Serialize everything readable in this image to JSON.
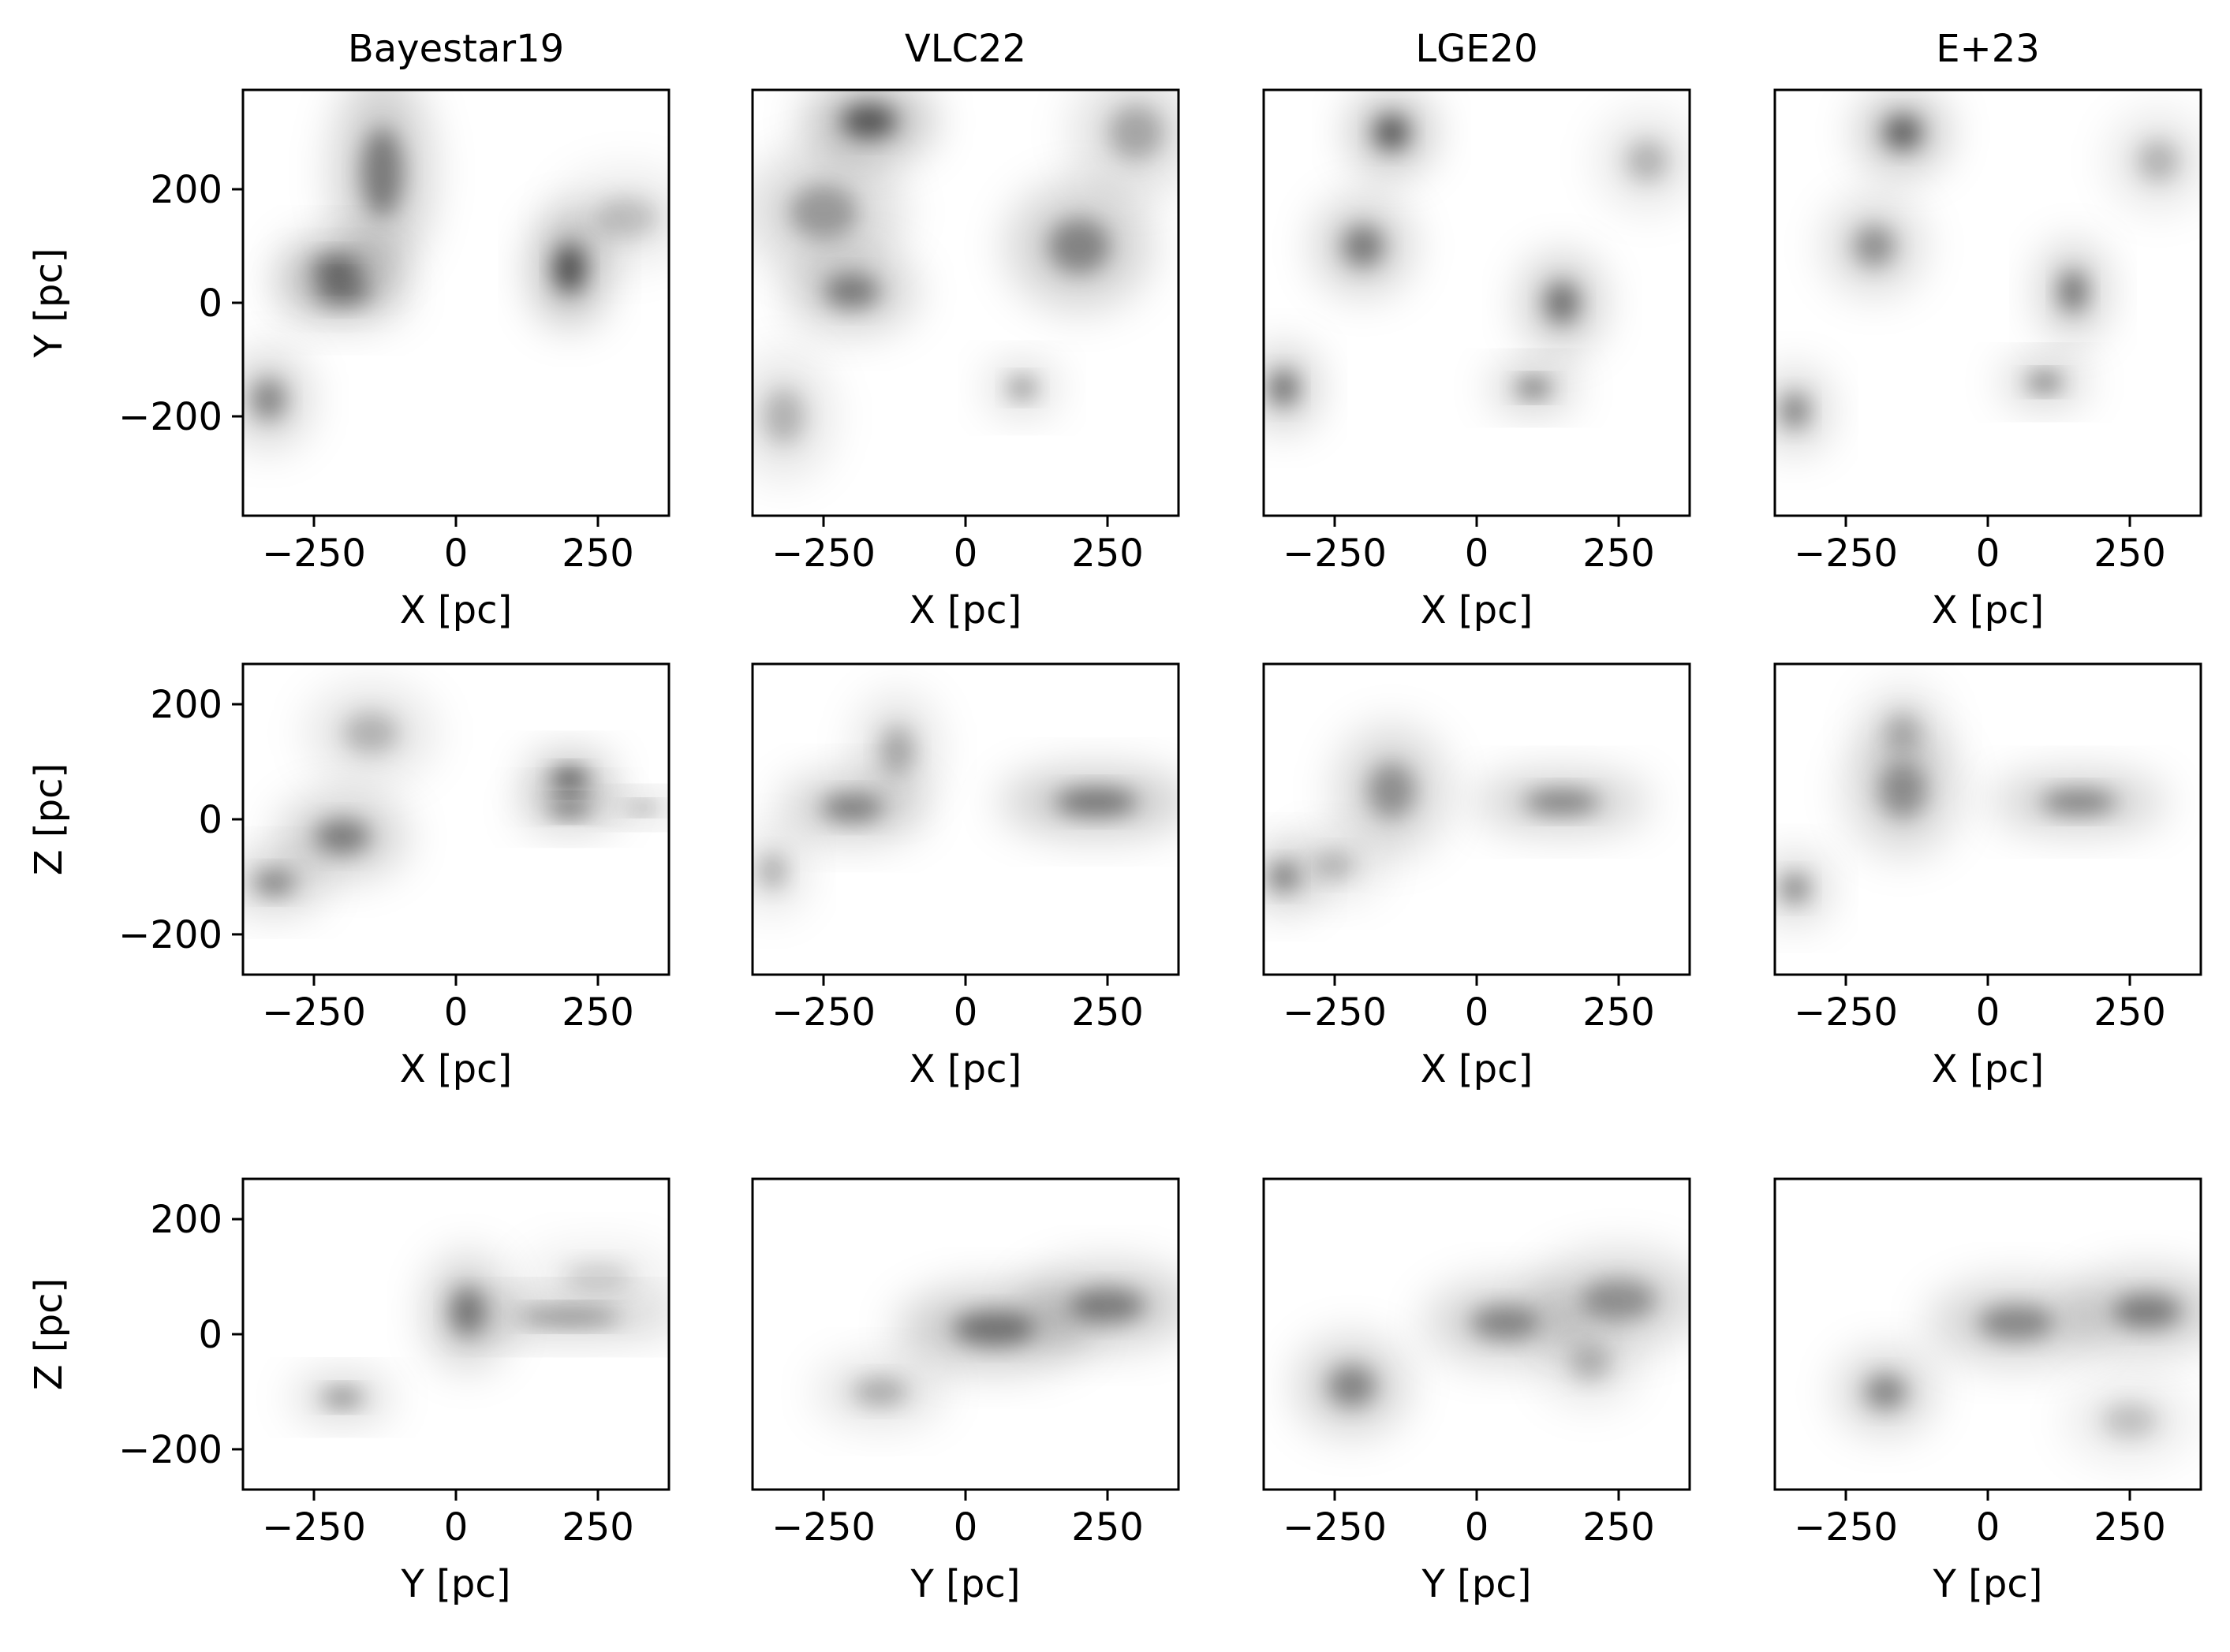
{
  "chart_data": {
    "type": "heatmap",
    "colormap": "Greys",
    "colormap_colors": [
      "#ffffff",
      "#000000"
    ],
    "columns": [
      {
        "title": "Bayestar19"
      },
      {
        "title": "VLC22"
      },
      {
        "title": "LGE20"
      },
      {
        "title": "E+23"
      }
    ],
    "rows": [
      {
        "projection": "XY",
        "xlabel": "X [pc]",
        "ylabel": "Y [pc]",
        "xlim": [
          -375,
          375
        ],
        "ylim": [
          -375,
          375
        ],
        "xticks": [
          -250,
          0,
          250
        ],
        "xtick_labels": [
          "−250",
          "0",
          "250"
        ],
        "yticks": [
          -200,
          0,
          200
        ],
        "ytick_labels": [
          "−200",
          "0",
          "200"
        ]
      },
      {
        "projection": "XZ",
        "xlabel": "X [pc]",
        "ylabel": "Z [pc]",
        "xlim": [
          -375,
          375
        ],
        "ylim": [
          -270,
          270
        ],
        "xticks": [
          -250,
          0,
          250
        ],
        "xtick_labels": [
          "−250",
          "0",
          "250"
        ],
        "yticks": [
          -200,
          0,
          200
        ],
        "ytick_labels": [
          "−200",
          "0",
          "200"
        ]
      },
      {
        "projection": "YZ",
        "xlabel": "Y [pc]",
        "ylabel": "Z [pc]",
        "xlim": [
          -375,
          375
        ],
        "ylim": [
          -270,
          270
        ],
        "xticks": [
          -250,
          0,
          250
        ],
        "xtick_labels": [
          "−250",
          "0",
          "250"
        ],
        "yticks": [
          -200,
          0,
          200
        ],
        "ytick_labels": [
          "−200",
          "0",
          "200"
        ]
      }
    ],
    "dust_features": [
      [
        [
          {
            "x": -130,
            "y": 230,
            "dx": 60,
            "dy": 130,
            "density": 0.55
          },
          {
            "x": -210,
            "y": 60,
            "dx": 70,
            "dy": 40,
            "density": 0.6
          },
          {
            "x": -200,
            "y": 20,
            "dx": 80,
            "dy": 40,
            "density": 0.55
          },
          {
            "x": 200,
            "y": 60,
            "dx": 45,
            "dy": 70,
            "density": 0.8
          },
          {
            "x": 300,
            "y": 150,
            "dx": 90,
            "dy": 60,
            "density": 0.25
          },
          {
            "x": -330,
            "y": -170,
            "dx": 50,
            "dy": 60,
            "density": 0.5
          }
        ],
        [
          {
            "x": -170,
            "y": 320,
            "dx": 80,
            "dy": 50,
            "density": 0.75
          },
          {
            "x": -250,
            "y": 160,
            "dx": 100,
            "dy": 80,
            "density": 0.4
          },
          {
            "x": -200,
            "y": 20,
            "dx": 80,
            "dy": 50,
            "density": 0.55
          },
          {
            "x": 200,
            "y": 100,
            "dx": 90,
            "dy": 80,
            "density": 0.5
          },
          {
            "x": 300,
            "y": 300,
            "dx": 80,
            "dy": 80,
            "density": 0.35
          },
          {
            "x": 100,
            "y": -150,
            "dx": 40,
            "dy": 30,
            "density": 0.5
          },
          {
            "x": -320,
            "y": -200,
            "dx": 60,
            "dy": 80,
            "density": 0.3
          }
        ],
        [
          {
            "x": -150,
            "y": 300,
            "dx": 50,
            "dy": 50,
            "density": 0.75
          },
          {
            "x": -200,
            "y": 100,
            "dx": 60,
            "dy": 60,
            "density": 0.55
          },
          {
            "x": 150,
            "y": 0,
            "dx": 50,
            "dy": 60,
            "density": 0.6
          },
          {
            "x": 100,
            "y": -150,
            "dx": 50,
            "dy": 25,
            "density": 0.7
          },
          {
            "x": -340,
            "y": -150,
            "dx": 40,
            "dy": 50,
            "density": 0.65
          },
          {
            "x": 300,
            "y": 250,
            "dx": 60,
            "dy": 60,
            "density": 0.3
          }
        ],
        [
          {
            "x": -150,
            "y": 300,
            "dx": 55,
            "dy": 50,
            "density": 0.7
          },
          {
            "x": -200,
            "y": 100,
            "dx": 60,
            "dy": 60,
            "density": 0.45
          },
          {
            "x": 150,
            "y": 20,
            "dx": 40,
            "dy": 60,
            "density": 0.6
          },
          {
            "x": 100,
            "y": -140,
            "dx": 50,
            "dy": 25,
            "density": 0.65
          },
          {
            "x": -340,
            "y": -190,
            "dx": 40,
            "dy": 50,
            "density": 0.55
          },
          {
            "x": 300,
            "y": 250,
            "dx": 60,
            "dy": 60,
            "density": 0.3
          }
        ]
      ],
      [
        [
          {
            "x": 200,
            "y": 70,
            "dx": 50,
            "dy": 30,
            "density": 0.8
          },
          {
            "x": 200,
            "y": 20,
            "dx": 60,
            "dy": 25,
            "density": 0.6
          },
          {
            "x": -200,
            "y": -30,
            "dx": 80,
            "dy": 50,
            "density": 0.55
          },
          {
            "x": -320,
            "y": -110,
            "dx": 60,
            "dy": 35,
            "density": 0.55
          },
          {
            "x": -150,
            "y": 150,
            "dx": 80,
            "dy": 60,
            "density": 0.3
          },
          {
            "x": 330,
            "y": 20,
            "dx": 50,
            "dy": 15,
            "density": 0.5
          }
        ],
        [
          {
            "x": -200,
            "y": 20,
            "dx": 90,
            "dy": 40,
            "density": 0.55
          },
          {
            "x": -120,
            "y": 120,
            "dx": 50,
            "dy": 70,
            "density": 0.35
          },
          {
            "x": 230,
            "y": 30,
            "dx": 120,
            "dy": 40,
            "density": 0.6
          },
          {
            "x": -340,
            "y": -90,
            "dx": 40,
            "dy": 50,
            "density": 0.35
          }
        ],
        [
          {
            "x": -150,
            "y": 50,
            "dx": 70,
            "dy": 80,
            "density": 0.45
          },
          {
            "x": 150,
            "y": 30,
            "dx": 110,
            "dy": 35,
            "density": 0.55
          },
          {
            "x": -340,
            "y": -100,
            "dx": 40,
            "dy": 40,
            "density": 0.6
          },
          {
            "x": -250,
            "y": -80,
            "dx": 60,
            "dy": 40,
            "density": 0.3
          }
        ],
        [
          {
            "x": -150,
            "y": 50,
            "dx": 70,
            "dy": 80,
            "density": 0.45
          },
          {
            "x": 160,
            "y": 30,
            "dx": 110,
            "dy": 35,
            "density": 0.55
          },
          {
            "x": -340,
            "y": -120,
            "dx": 40,
            "dy": 40,
            "density": 0.55
          },
          {
            "x": -150,
            "y": 150,
            "dx": 50,
            "dy": 60,
            "density": 0.3
          }
        ]
      ],
      [
        [
          {
            "x": 20,
            "y": 40,
            "dx": 50,
            "dy": 70,
            "density": 0.55
          },
          {
            "x": 200,
            "y": 30,
            "dx": 150,
            "dy": 25,
            "density": 0.5
          },
          {
            "x": -200,
            "y": -110,
            "dx": 60,
            "dy": 25,
            "density": 0.55
          },
          {
            "x": 250,
            "y": 100,
            "dx": 100,
            "dy": 40,
            "density": 0.2
          }
        ],
        [
          {
            "x": 50,
            "y": 10,
            "dx": 120,
            "dy": 50,
            "density": 0.6
          },
          {
            "x": 250,
            "y": 50,
            "dx": 110,
            "dy": 50,
            "density": 0.55
          },
          {
            "x": -150,
            "y": -100,
            "dx": 80,
            "dy": 40,
            "density": 0.35
          }
        ],
        [
          {
            "x": 50,
            "y": 20,
            "dx": 100,
            "dy": 50,
            "density": 0.5
          },
          {
            "x": 250,
            "y": 60,
            "dx": 110,
            "dy": 60,
            "density": 0.45
          },
          {
            "x": -220,
            "y": -90,
            "dx": 70,
            "dy": 60,
            "density": 0.5
          },
          {
            "x": 200,
            "y": -50,
            "dx": 60,
            "dy": 50,
            "density": 0.3
          }
        ],
        [
          {
            "x": 50,
            "y": 20,
            "dx": 110,
            "dy": 50,
            "density": 0.5
          },
          {
            "x": 280,
            "y": 40,
            "dx": 100,
            "dy": 50,
            "density": 0.55
          },
          {
            "x": -180,
            "y": -100,
            "dx": 60,
            "dy": 50,
            "density": 0.5
          },
          {
            "x": 250,
            "y": -150,
            "dx": 80,
            "dy": 50,
            "density": 0.25
          }
        ]
      ]
    ]
  }
}
